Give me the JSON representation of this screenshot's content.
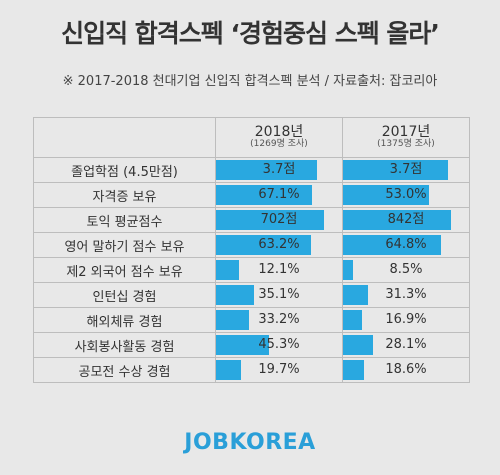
{
  "title": "신입직 합격스펙 ‘경험중심 스펙 올라’",
  "subtitle": "※ 2017-2018 천대기업 신입직 합격스펙 분석 / 자료출처: 잡코리아",
  "logo": "JOBKOREA",
  "colors": {
    "bar": "#29a8e0",
    "background": "#e8e8e8",
    "logo": "#2a9fd8"
  },
  "chart_data": {
    "type": "bar",
    "categories": [
      "졸업학점 (4.5만점)",
      "자격증 보유",
      "토익 평균점수",
      "영어 말하기 점수 보유",
      "제2 외국어 점수 보유",
      "인턴십 경험",
      "해외체류 경험",
      "사회봉사활동 경험",
      "공모전 수상 경험"
    ],
    "series": [
      {
        "name": "2018년",
        "note": "(1269명 조사)",
        "labels": [
          "3.7점",
          "67.1%",
          "702점",
          "63.2%",
          "12.1%",
          "35.1%",
          "33.2%",
          "45.3%",
          "19.7%"
        ],
        "fill": [
          0.8,
          0.76,
          0.86,
          0.75,
          0.18,
          0.3,
          0.26,
          0.42,
          0.2
        ]
      },
      {
        "name": "2017년",
        "note": "(1375명 조사)",
        "labels": [
          "3.7점",
          "53.0%",
          "842점",
          "64.8%",
          "8.5%",
          "31.3%",
          "16.9%",
          "28.1%",
          "18.6%"
        ],
        "fill": [
          0.83,
          0.68,
          0.86,
          0.78,
          0.08,
          0.2,
          0.15,
          0.24,
          0.17
        ]
      }
    ]
  }
}
